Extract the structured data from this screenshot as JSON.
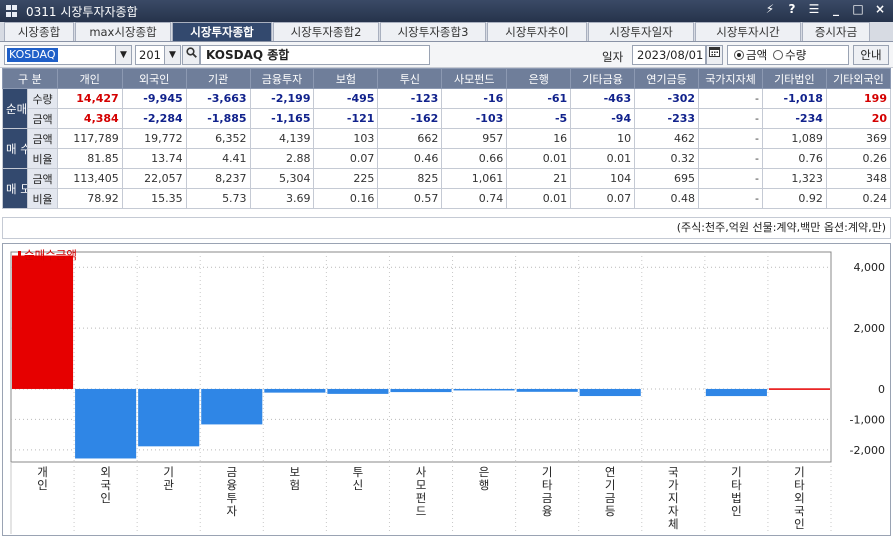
{
  "window": {
    "title": "0311 시장투자자종합"
  },
  "window_controls": [
    "⚡",
    "?",
    "☰",
    "_",
    "□",
    "×"
  ],
  "tabs": [
    {
      "label": "시장종합",
      "active": false
    },
    {
      "label": "max시장종합",
      "active": false
    },
    {
      "label": "시장투자종합",
      "active": true
    },
    {
      "label": "시장투자종합2",
      "active": false
    },
    {
      "label": "시장투자종합3",
      "active": false
    },
    {
      "label": "시장투자추이",
      "active": false
    },
    {
      "label": "시장투자일자",
      "active": false
    },
    {
      "label": "시장투자시간",
      "active": false
    },
    {
      "label": "증시자금",
      "active": false
    }
  ],
  "toolbar": {
    "market": "KOSDAQ",
    "code": "201",
    "name": "KOSDAQ 종합",
    "date_label": "일자",
    "date": "2023/08/01",
    "radio_amount": "금액",
    "radio_qty": "수량",
    "selected": "금액",
    "guide": "안내"
  },
  "table": {
    "header_first": "구 분",
    "columns": [
      "개인",
      "외국인",
      "기관",
      "금융투자",
      "보험",
      "투신",
      "사모펀드",
      "은행",
      "기타금융",
      "연기금등",
      "국가지자체",
      "기타법인",
      "기타외국인"
    ],
    "groups": [
      {
        "label": "순매수",
        "rows": [
          {
            "label": "수량",
            "values": [
              "14,427",
              "-9,945",
              "-3,663",
              "-2,199",
              "-495",
              "-123",
              "-16",
              "-61",
              "-463",
              "-302",
              "-",
              "-1,018",
              "199"
            ]
          },
          {
            "label": "금액",
            "values": [
              "4,384",
              "-2,284",
              "-1,885",
              "-1,165",
              "-121",
              "-162",
              "-103",
              "-5",
              "-94",
              "-233",
              "-",
              "-234",
              "20"
            ]
          }
        ]
      },
      {
        "label": "매 수",
        "rows": [
          {
            "label": "금액",
            "values": [
              "117,789",
              "19,772",
              "6,352",
              "4,139",
              "103",
              "662",
              "957",
              "16",
              "10",
              "462",
              "-",
              "1,089",
              "369"
            ]
          },
          {
            "label": "비율",
            "values": [
              "81.85",
              "13.74",
              "4.41",
              "2.88",
              "0.07",
              "0.46",
              "0.66",
              "0.01",
              "0.01",
              "0.32",
              "-",
              "0.76",
              "0.26"
            ]
          }
        ]
      },
      {
        "label": "매 도",
        "rows": [
          {
            "label": "금액",
            "values": [
              "113,405",
              "22,057",
              "8,237",
              "5,304",
              "225",
              "825",
              "1,061",
              "21",
              "104",
              "695",
              "-",
              "1,323",
              "348"
            ]
          },
          {
            "label": "비율",
            "values": [
              "78.92",
              "15.35",
              "5.73",
              "3.69",
              "0.16",
              "0.57",
              "0.74",
              "0.01",
              "0.07",
              "0.48",
              "-",
              "0.92",
              "0.24"
            ]
          }
        ]
      }
    ]
  },
  "unit_note": "(주식:천주,억원 선물:계약,백만 옵션:계약,만)",
  "colors": {
    "positive": "#e60000",
    "negative": "#2f86e6",
    "header": "#6f7e9a",
    "group": "#33496e"
  },
  "chart_data": {
    "type": "bar",
    "legend": "순매수금액",
    "categories": [
      "개인",
      "외국인",
      "기관",
      "금융투자",
      "보험",
      "투신",
      "사모펀드",
      "은행",
      "기타금융",
      "연기금등",
      "국가지자체",
      "기타법인",
      "기타외국인"
    ],
    "values": [
      4384,
      -2284,
      -1885,
      -1165,
      -121,
      -162,
      -103,
      -5,
      -94,
      -233,
      0,
      -234,
      20
    ],
    "ylim": [
      -2400,
      4500
    ],
    "yticks": [
      4000,
      2000,
      0,
      -1000,
      -2000
    ],
    "ytick_labels": [
      "4,000",
      "2,000",
      "0",
      "-1,000",
      "-2,000"
    ],
    "grid": true,
    "legend_position": "top-left"
  }
}
